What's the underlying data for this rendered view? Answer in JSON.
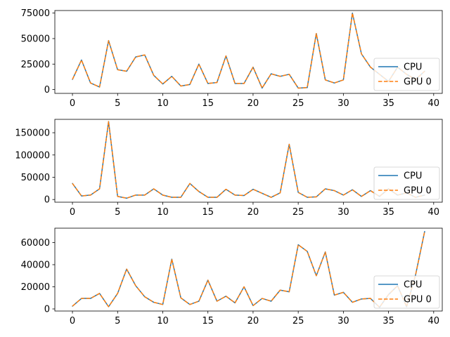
{
  "chart_data": [
    {
      "type": "line",
      "x": [
        0,
        1,
        2,
        3,
        4,
        5,
        6,
        7,
        8,
        9,
        10,
        11,
        12,
        13,
        14,
        15,
        16,
        17,
        18,
        19,
        20,
        21,
        22,
        23,
        24,
        25,
        26,
        27,
        28,
        29,
        30,
        31,
        32,
        33,
        34,
        35,
        36,
        37,
        38,
        39
      ],
      "series": [
        {
          "name": "CPU",
          "color": "#1f77b4",
          "style": "solid",
          "values": [
            10000,
            29000,
            6500,
            2500,
            48000,
            19500,
            18000,
            32000,
            34000,
            14000,
            5500,
            13000,
            3500,
            5000,
            25000,
            6000,
            7000,
            33000,
            6000,
            6000,
            22000,
            1500,
            15500,
            13000,
            15000,
            1500,
            2000,
            55000,
            9500,
            6500,
            9500,
            75000,
            35000,
            22000,
            15000,
            8000,
            22000,
            15000,
            10000,
            18000
          ]
        },
        {
          "name": "GPU 0",
          "color": "#ff7f0e",
          "style": "dashed",
          "values": [
            10000,
            29000,
            6500,
            2500,
            48000,
            19500,
            18000,
            32000,
            34000,
            14000,
            5500,
            13000,
            3500,
            5000,
            25000,
            6000,
            7000,
            33000,
            6000,
            6000,
            22000,
            1500,
            15500,
            13000,
            15000,
            1500,
            2000,
            55000,
            9500,
            6500,
            9500,
            75000,
            35000,
            22000,
            15000,
            8000,
            22000,
            15000,
            10000,
            18000
          ]
        }
      ],
      "xlim": [
        -1.95,
        40.95
      ],
      "ylim": [
        -3700,
        77500
      ],
      "xticks": [
        0,
        5,
        10,
        15,
        20,
        25,
        30,
        35,
        40
      ],
      "xtick_labels": [
        "0",
        "5",
        "10",
        "15",
        "20",
        "25",
        "30",
        "35",
        "40"
      ],
      "yticks": [
        0,
        25000,
        50000,
        75000
      ],
      "ytick_labels": [
        "0",
        "25000",
        "50000",
        "75000"
      ],
      "legend": {
        "position": "lower-right",
        "entries": [
          "CPU",
          "GPU 0"
        ]
      },
      "grid": false
    },
    {
      "type": "line",
      "x": [
        0,
        1,
        2,
        3,
        4,
        5,
        6,
        7,
        8,
        9,
        10,
        11,
        12,
        13,
        14,
        15,
        16,
        17,
        18,
        19,
        20,
        21,
        22,
        23,
        24,
        25,
        26,
        27,
        28,
        29,
        30,
        31,
        32,
        33,
        34,
        35,
        36,
        37,
        38,
        39
      ],
      "series": [
        {
          "name": "CPU",
          "color": "#1f77b4",
          "style": "solid",
          "values": [
            36000,
            8000,
            10000,
            24000,
            175000,
            7000,
            3000,
            10000,
            10000,
            24000,
            10000,
            5000,
            5000,
            36000,
            18000,
            5000,
            5000,
            23000,
            10000,
            9000,
            23000,
            14000,
            5000,
            15000,
            124000,
            16000,
            5000,
            6000,
            24000,
            20000,
            10000,
            22000,
            7000,
            20000,
            7000,
            24000,
            10000,
            15000,
            5000,
            10000
          ]
        },
        {
          "name": "GPU 0",
          "color": "#ff7f0e",
          "style": "dashed",
          "values": [
            36000,
            8000,
            10000,
            24000,
            175000,
            7000,
            3000,
            10000,
            10000,
            24000,
            10000,
            5000,
            5000,
            36000,
            18000,
            5000,
            5000,
            23000,
            10000,
            9000,
            23000,
            14000,
            5000,
            15000,
            124000,
            16000,
            5000,
            6000,
            24000,
            20000,
            10000,
            22000,
            7000,
            20000,
            7000,
            24000,
            10000,
            15000,
            5000,
            10000
          ]
        }
      ],
      "xlim": [
        -1.95,
        40.95
      ],
      "ylim": [
        -6000,
        180000
      ],
      "xticks": [
        0,
        5,
        10,
        15,
        20,
        25,
        30,
        35,
        40
      ],
      "xtick_labels": [
        "0",
        "5",
        "10",
        "15",
        "20",
        "25",
        "30",
        "35",
        "40"
      ],
      "yticks": [
        0,
        50000,
        100000,
        150000
      ],
      "ytick_labels": [
        "0",
        "50000",
        "100000",
        "150000"
      ],
      "legend": {
        "position": "lower-right",
        "entries": [
          "CPU",
          "GPU 0"
        ]
      },
      "grid": false
    },
    {
      "type": "line",
      "x": [
        0,
        1,
        2,
        3,
        4,
        5,
        6,
        7,
        8,
        9,
        10,
        11,
        12,
        13,
        14,
        15,
        16,
        17,
        18,
        19,
        20,
        21,
        22,
        23,
        24,
        25,
        26,
        27,
        28,
        29,
        30,
        31,
        32,
        33,
        34,
        35,
        36,
        37,
        38,
        39
      ],
      "series": [
        {
          "name": "CPU",
          "color": "#1f77b4",
          "style": "solid",
          "values": [
            2500,
            9500,
            9500,
            14000,
            2000,
            14000,
            36000,
            21000,
            11000,
            6000,
            4000,
            45000,
            10000,
            4000,
            7000,
            26000,
            7000,
            11500,
            5500,
            20000,
            3000,
            9500,
            7000,
            17000,
            15500,
            58000,
            52000,
            30000,
            51500,
            12500,
            15000,
            6000,
            9000,
            9500,
            1500,
            13000,
            21000,
            2000,
            31000,
            70000
          ]
        },
        {
          "name": "GPU 0",
          "color": "#ff7f0e",
          "style": "dashed",
          "values": [
            2500,
            9500,
            9500,
            14000,
            2000,
            14000,
            36000,
            21000,
            11000,
            6000,
            4000,
            45000,
            10000,
            4000,
            7000,
            26000,
            7000,
            11500,
            5500,
            20000,
            3000,
            9500,
            7000,
            17000,
            15500,
            58000,
            52000,
            30000,
            51500,
            12500,
            15000,
            6000,
            9000,
            9500,
            1500,
            13000,
            21000,
            2000,
            31000,
            70000
          ]
        }
      ],
      "xlim": [
        -1.95,
        40.95
      ],
      "ylim": [
        -1900,
        73000
      ],
      "xticks": [
        0,
        5,
        10,
        15,
        20,
        25,
        30,
        35,
        40
      ],
      "xtick_labels": [
        "0",
        "5",
        "10",
        "15",
        "20",
        "25",
        "30",
        "35",
        "40"
      ],
      "yticks": [
        0,
        20000,
        40000,
        60000
      ],
      "ytick_labels": [
        "0",
        "20000",
        "40000",
        "60000"
      ],
      "legend": {
        "position": "lower-right",
        "entries": [
          "CPU",
          "GPU 0"
        ]
      },
      "grid": false
    }
  ]
}
